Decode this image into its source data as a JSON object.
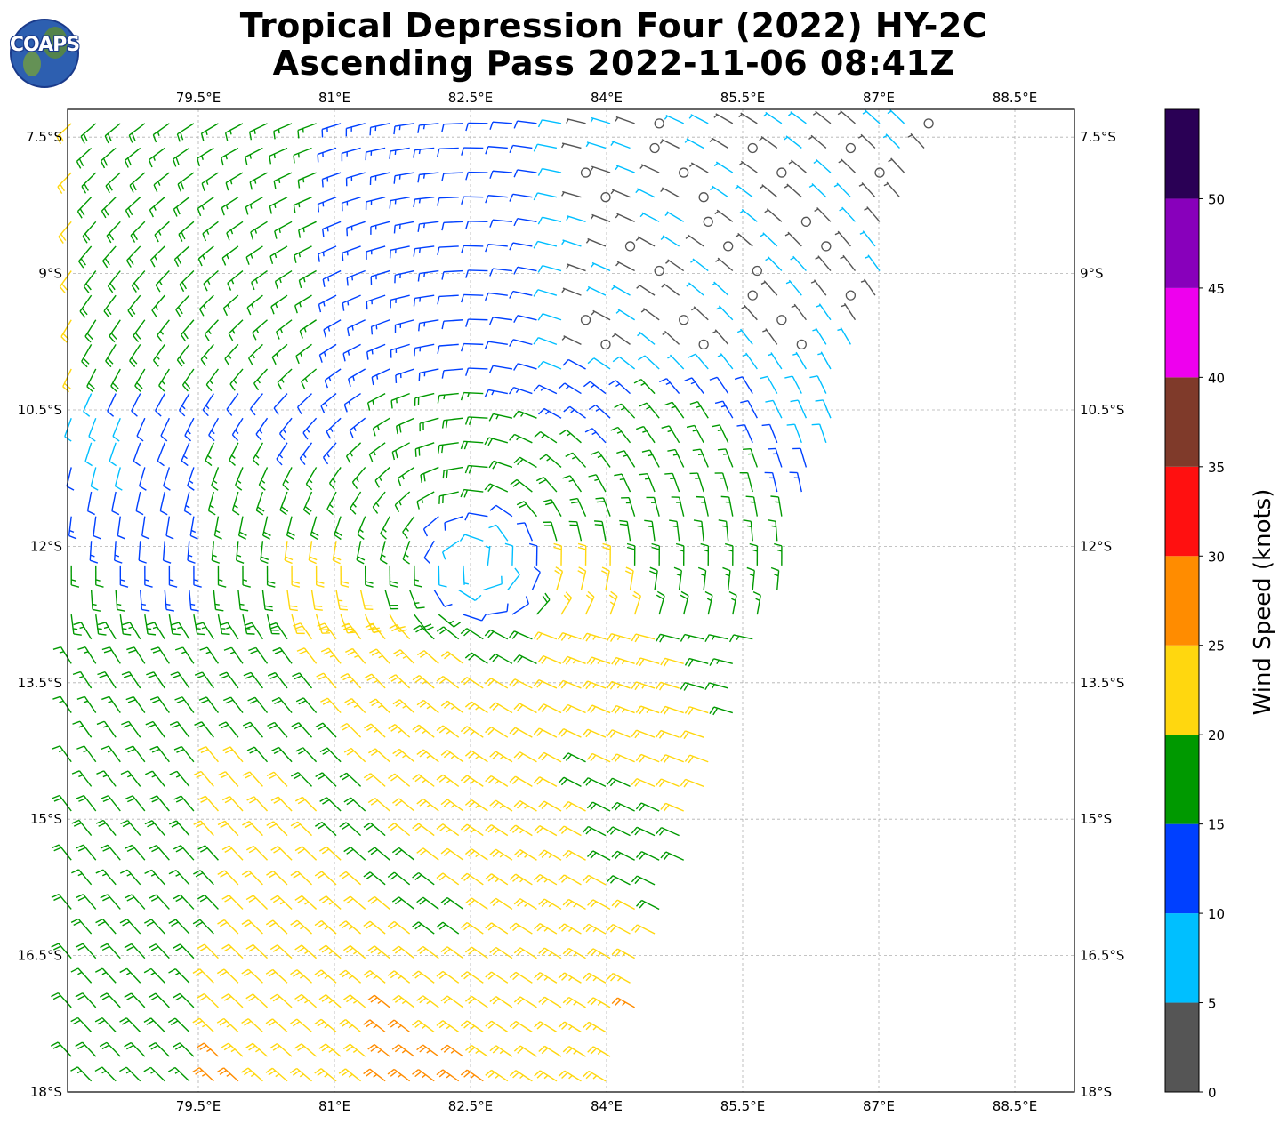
{
  "title": {
    "line1": "Tropical Depression Four (2022) HY-2C",
    "line2": "Ascending Pass 2022-11-06 08:41Z"
  },
  "logo": {
    "text": "COAPS"
  },
  "map": {
    "lon_range": [
      78.0,
      89.0
    ],
    "lat_range": [
      -18.0,
      -7.2
    ],
    "lon_ticks": [
      79.5,
      81.0,
      82.5,
      84.0,
      85.5,
      87.0,
      88.5
    ],
    "lon_labels": [
      "79.5°E",
      "81°E",
      "82.5°E",
      "84°E",
      "85.5°E",
      "87°E",
      "88.5°E"
    ],
    "lat_ticks": [
      -7.5,
      -9.0,
      -10.5,
      -12.0,
      -13.5,
      -15.0,
      -16.5,
      -18.0
    ],
    "lat_labels": [
      "7.5°S",
      "9°S",
      "10.5°S",
      "12°S",
      "13.5°S",
      "15°S",
      "16.5°S",
      "18°S"
    ],
    "grid": true,
    "storm_center": {
      "lon": 82.6,
      "lat": -12.2
    }
  },
  "colorbar": {
    "label": "Wind Speed (knots)",
    "ticks": [
      0,
      5,
      10,
      15,
      20,
      25,
      30,
      35,
      40,
      45,
      50
    ],
    "bins": [
      {
        "from": 0,
        "to": 5,
        "color": "#555555"
      },
      {
        "from": 5,
        "to": 10,
        "color": "#00bfff"
      },
      {
        "from": 10,
        "to": 15,
        "color": "#0040ff"
      },
      {
        "from": 15,
        "to": 20,
        "color": "#009900"
      },
      {
        "from": 20,
        "to": 25,
        "color": "#ffd70f"
      },
      {
        "from": 25,
        "to": 30,
        "color": "#ff8c00"
      },
      {
        "from": 30,
        "to": 35,
        "color": "#ff1010"
      },
      {
        "from": 35,
        "to": 40,
        "color": "#7f3a2a"
      },
      {
        "from": 40,
        "to": 45,
        "color": "#ee00ee"
      },
      {
        "from": 45,
        "to": 50,
        "color": "#8800bb"
      },
      {
        "from": 50,
        "to": 55,
        "color": "#2a0055"
      }
    ]
  }
}
